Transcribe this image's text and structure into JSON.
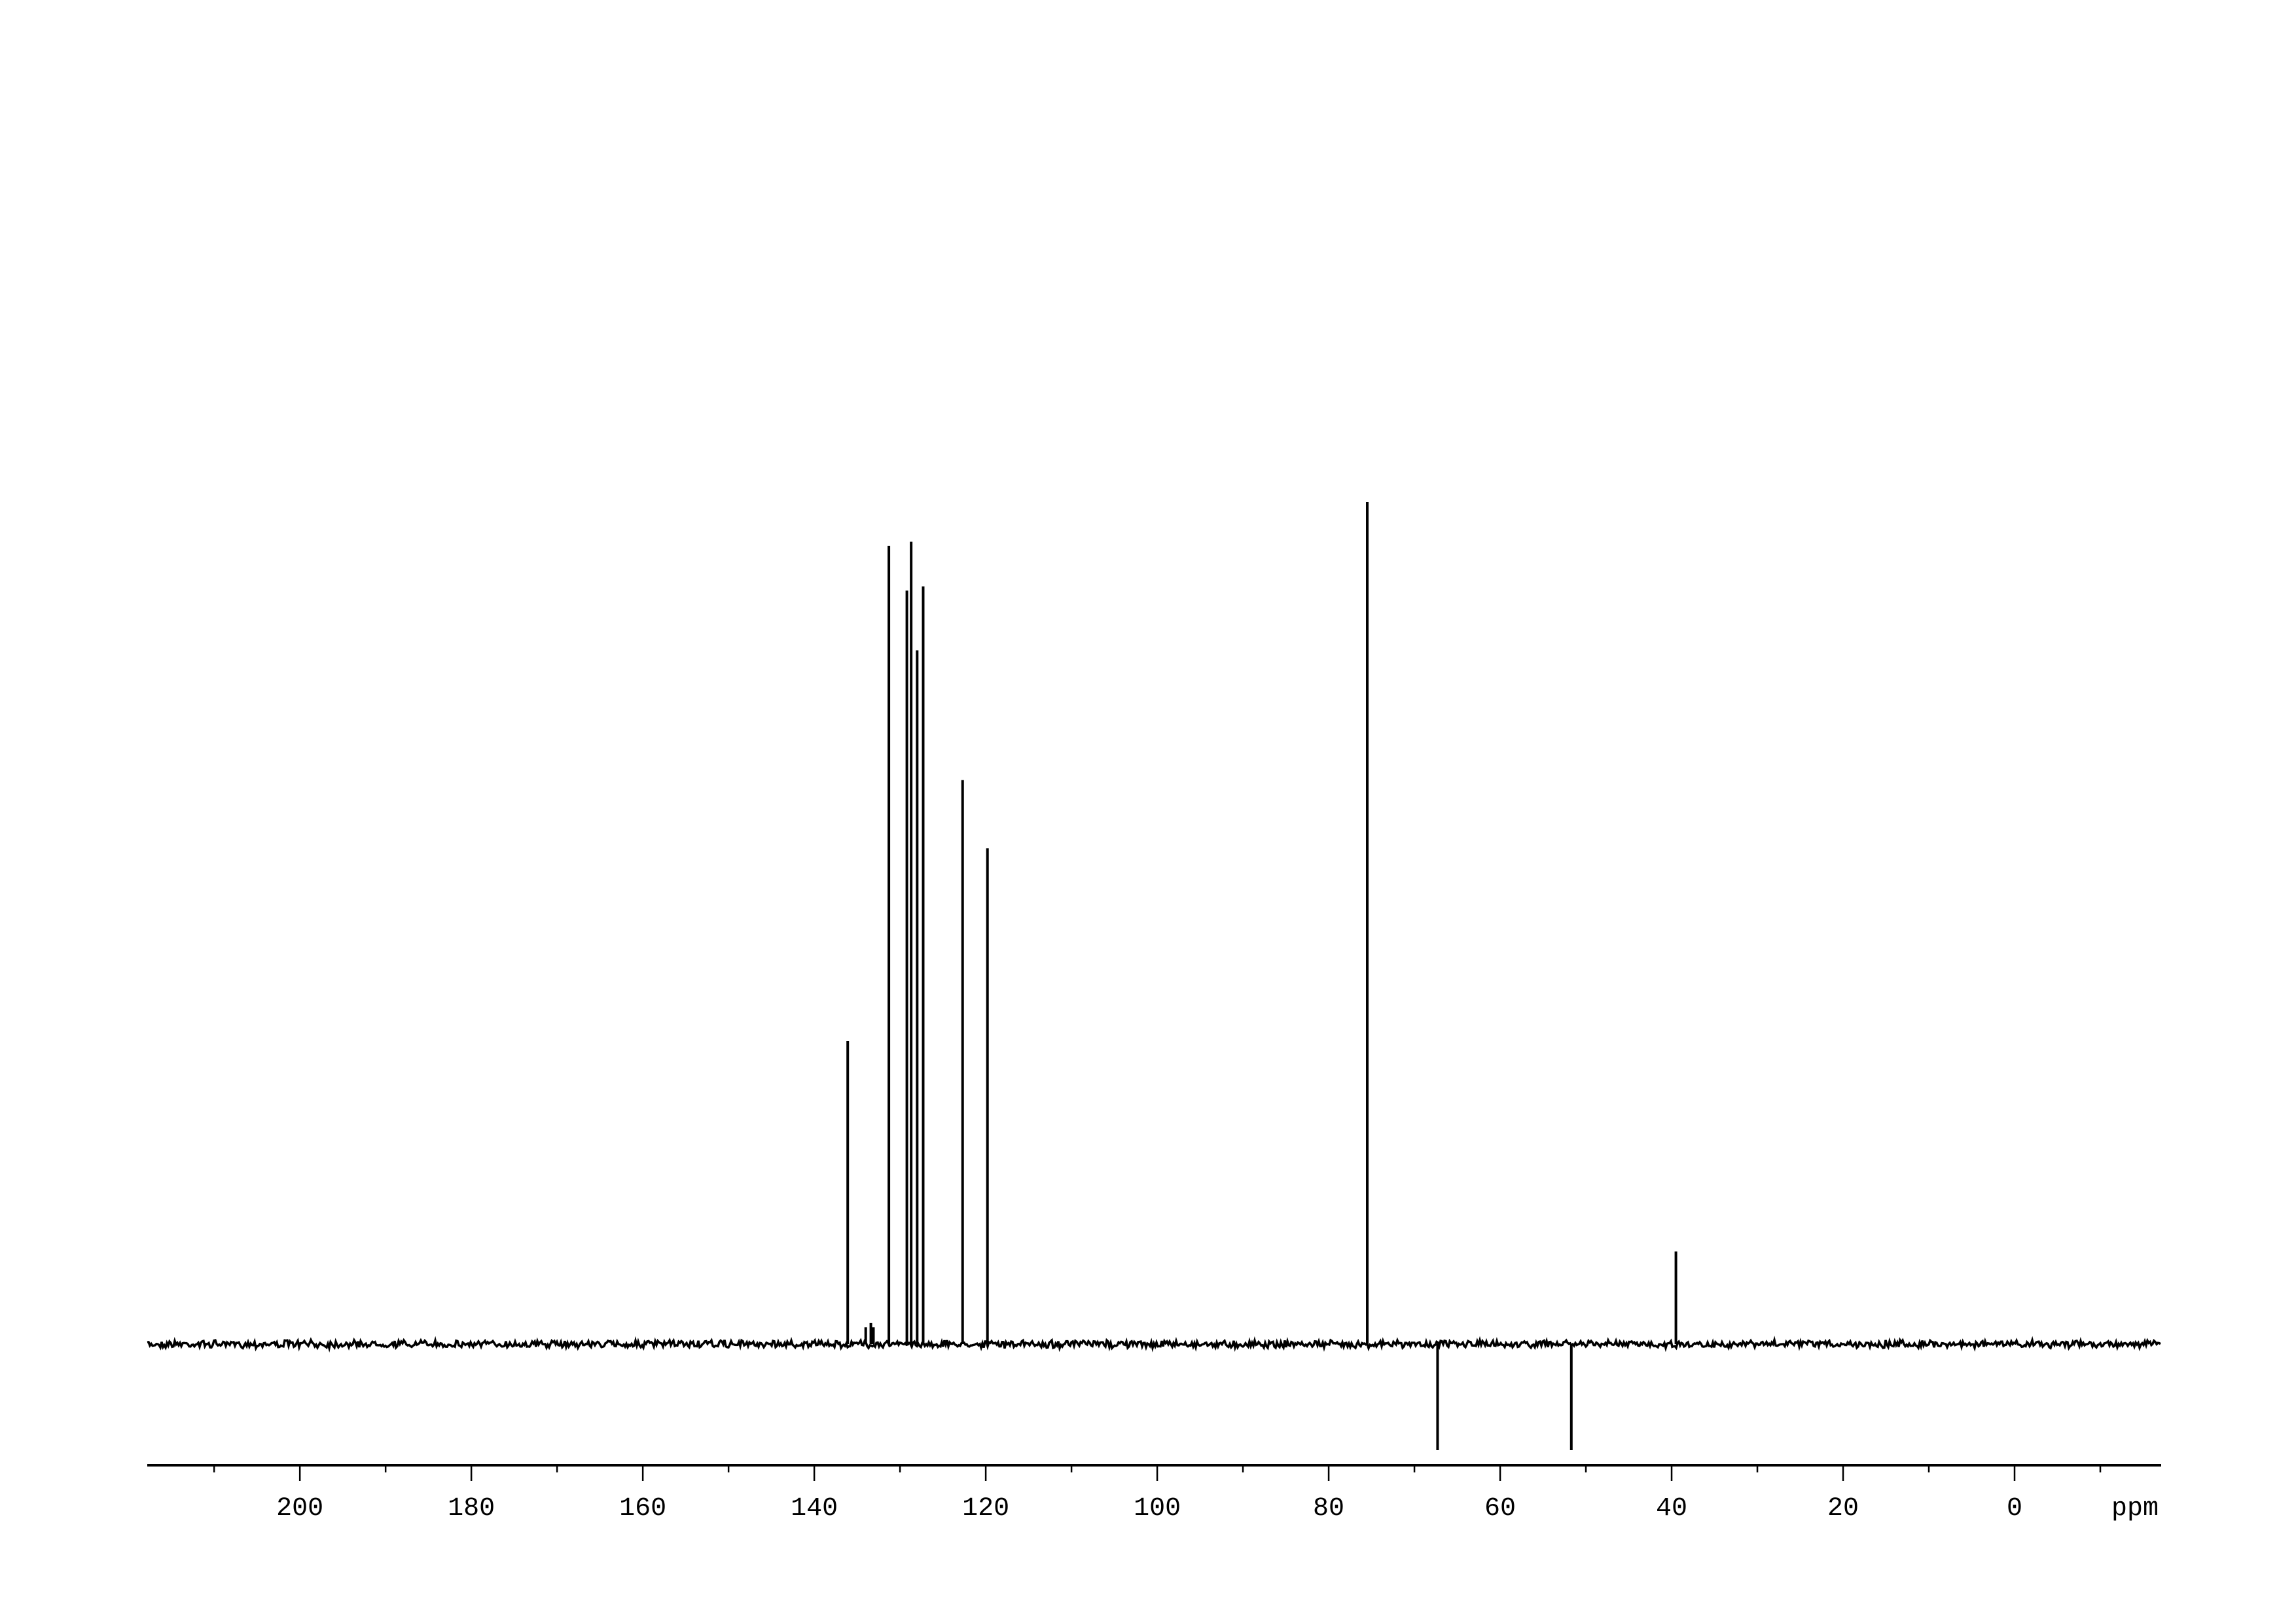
{
  "chart_data": {
    "type": "line",
    "title": "",
    "xlabel": "ppm",
    "ylabel": "",
    "xlim": [
      217.8,
      -17.1
    ],
    "x_reversed": true,
    "grid": false,
    "legend": "none",
    "line_color": "#000000",
    "x_ticks_major": [
      200,
      180,
      160,
      140,
      120,
      100,
      80,
      60,
      40,
      20,
      0
    ],
    "x_tick_labels": [
      "200",
      "180",
      "160",
      "140",
      "120",
      "100",
      "80",
      "60",
      "40",
      "20",
      "0"
    ],
    "x_ticks_minor": [
      210,
      190,
      170,
      150,
      130,
      110,
      90,
      70,
      50,
      30,
      10,
      -10
    ],
    "peaks": [
      {
        "ppm": 136.1,
        "intensity": 0.36
      },
      {
        "ppm": 134.0,
        "intensity": 0.02
      },
      {
        "ppm": 133.4,
        "intensity": 0.025
      },
      {
        "ppm": 133.1,
        "intensity": 0.02
      },
      {
        "ppm": 131.3,
        "intensity": 0.948
      },
      {
        "ppm": 129.2,
        "intensity": 0.895
      },
      {
        "ppm": 128.7,
        "intensity": 0.953
      },
      {
        "ppm": 128.0,
        "intensity": 0.824
      },
      {
        "ppm": 127.3,
        "intensity": 0.9
      },
      {
        "ppm": 122.7,
        "intensity": 0.67
      },
      {
        "ppm": 119.8,
        "intensity": 0.589
      },
      {
        "ppm": 75.5,
        "intensity": 1.0
      },
      {
        "ppm": 67.3,
        "intensity": -0.126
      },
      {
        "ppm": 51.7,
        "intensity": -0.126
      },
      {
        "ppm": 39.5,
        "intensity": 0.11
      }
    ]
  }
}
